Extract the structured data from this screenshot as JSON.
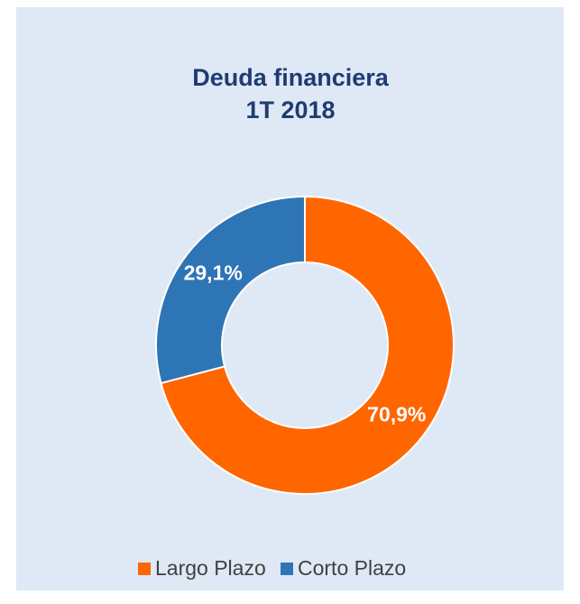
{
  "chart_data": {
    "type": "donut",
    "title": "Deuda financiera",
    "subtitle": "1T 2018",
    "categories": [
      "Largo Plazo",
      "Corto Plazo"
    ],
    "values": [
      70.9,
      29.1
    ],
    "value_labels": [
      "70,9%",
      "29,1%"
    ],
    "colors": [
      "#ff6600",
      "#2e75b6"
    ],
    "legend": "bottom"
  }
}
